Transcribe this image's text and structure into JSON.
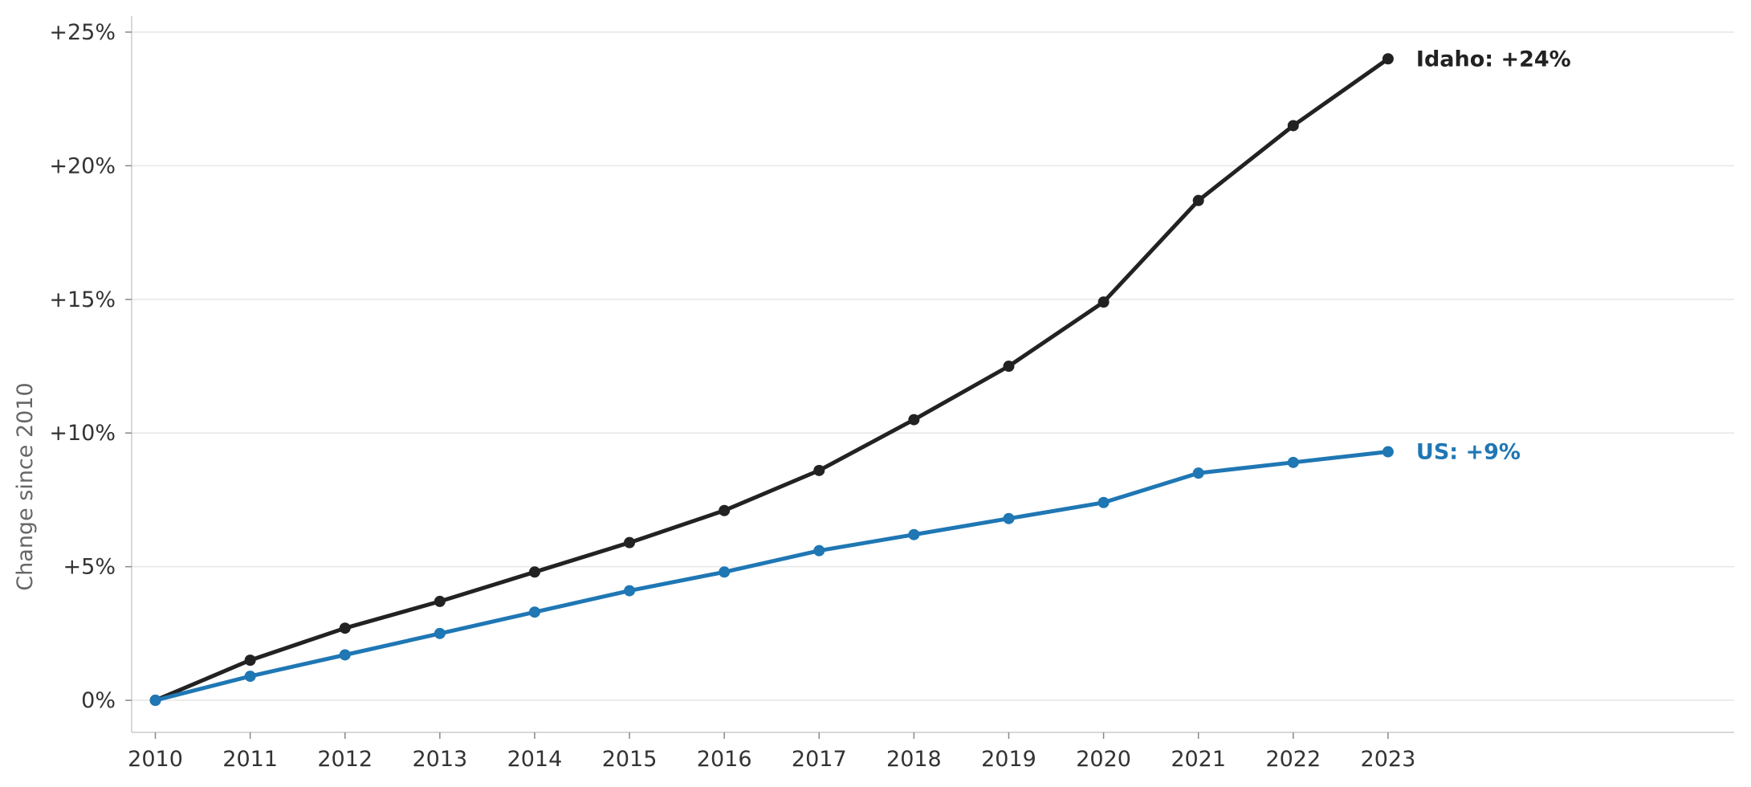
{
  "chart_data": {
    "type": "line",
    "title": "",
    "xlabel": "",
    "ylabel": "Change since 2010",
    "x": [
      2010,
      2011,
      2012,
      2013,
      2014,
      2015,
      2016,
      2017,
      2018,
      2019,
      2020,
      2021,
      2022,
      2023
    ],
    "x_tick_labels": [
      "2010",
      "2011",
      "2012",
      "2013",
      "2014",
      "2015",
      "2016",
      "2017",
      "2018",
      "2019",
      "2020",
      "2021",
      "2022",
      "2023"
    ],
    "y_ticks": [
      0,
      5,
      10,
      15,
      20,
      25
    ],
    "y_tick_labels": [
      "0%",
      "+5%",
      "+10%",
      "+15%",
      "+20%",
      "+25%"
    ],
    "ylim": [
      -1.2,
      25.6
    ],
    "xlim": [
      2009.75,
      2026.65
    ],
    "grid": "horizontal",
    "legend": "none",
    "series": [
      {
        "end_label": "Idaho: +24%",
        "color": "#222222",
        "values": [
          0,
          1.5,
          2.7,
          3.7,
          4.8,
          5.9,
          7.1,
          8.6,
          10.5,
          12.5,
          14.9,
          18.7,
          21.5,
          24.0
        ]
      },
      {
        "end_label": "US: +9%",
        "color": "#1f77b4",
        "values": [
          0,
          0.9,
          1.7,
          2.5,
          3.3,
          4.1,
          4.8,
          5.6,
          6.2,
          6.8,
          7.4,
          8.5,
          8.9,
          9.3
        ]
      }
    ]
  }
}
